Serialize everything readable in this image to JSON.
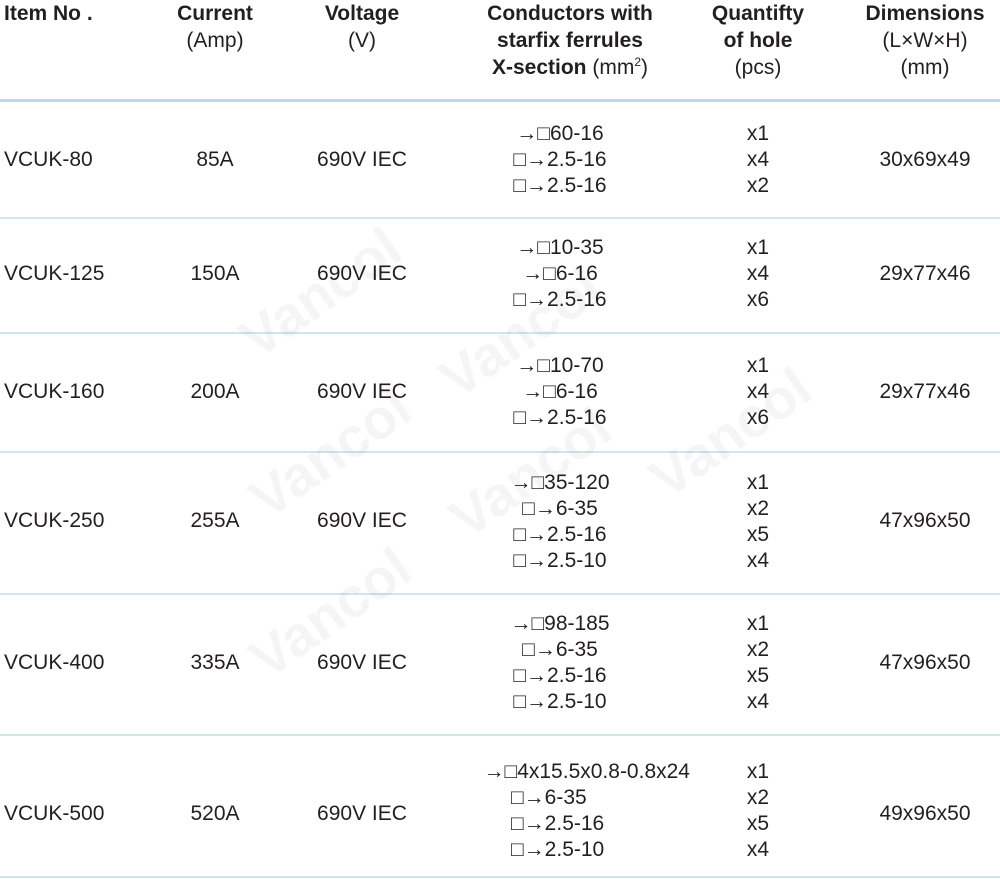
{
  "watermark_text": "Vancol",
  "header": {
    "item": {
      "bold": "Item No ."
    },
    "current": {
      "bold": "Current",
      "sub": "(Amp)"
    },
    "voltage": {
      "bold": "Voltage",
      "sub": "(V)"
    },
    "conductors": {
      "line1": "Conductors with",
      "line2": "starfix  ferrules",
      "line3_bold": "X-section",
      "line3_unit": " (mm",
      "line3_sup": "2",
      "line3_close": ")"
    },
    "quantity": {
      "line1": "Quantifty",
      "line2": "of hole",
      "sub": "(pcs)"
    },
    "dimensions": {
      "bold": "Dimensions",
      "sub1": "(L×W×H)",
      "sub2": "(mm)"
    }
  },
  "rows": [
    {
      "item": "VCUK-80",
      "current": "85A",
      "voltage": "690V IEC",
      "dims": "30x69x49",
      "conductors": [
        "→□60-16",
        "□→2.5-16",
        "□→2.5-16"
      ],
      "qty": [
        "x1",
        "x4",
        "x2"
      ]
    },
    {
      "item": "VCUK-125",
      "current": "150A",
      "voltage": "690V IEC",
      "dims": "29x77x46",
      "conductors": [
        "→□10-35",
        "→□6-16",
        "□→2.5-16"
      ],
      "qty": [
        "x1",
        "x4",
        "x6"
      ]
    },
    {
      "item": "VCUK-160",
      "current": "200A",
      "voltage": "690V IEC",
      "dims": "29x77x46",
      "conductors": [
        "→□10-70",
        "→□6-16",
        "□→2.5-16"
      ],
      "qty": [
        "x1",
        "x4",
        "x6"
      ]
    },
    {
      "item": "VCUK-250",
      "current": "255A",
      "voltage": "690V IEC",
      "dims": "47x96x50",
      "conductors": [
        "→□35-120",
        "□→6-35",
        "□→2.5-16",
        "□→2.5-10"
      ],
      "qty": [
        "x1",
        "x2",
        "x5",
        "x4"
      ]
    },
    {
      "item": "VCUK-400",
      "current": "335A",
      "voltage": "690V IEC",
      "dims": "47x96x50",
      "conductors": [
        "→□98-185",
        "□→6-35",
        "□→2.5-16",
        "□→2.5-10"
      ],
      "qty": [
        "x1",
        "x2",
        "x5",
        "x4"
      ]
    },
    {
      "item": "VCUK-500",
      "current": "520A",
      "voltage": "690V IEC",
      "dims": "49x96x50",
      "conductors": [
        "→□4x15.5x0.8-0.8x24",
        "□→6-35",
        "□→2.5-16",
        "□→2.5-10"
      ],
      "qty": [
        "x1",
        "x2",
        "x5",
        "x4"
      ]
    }
  ]
}
